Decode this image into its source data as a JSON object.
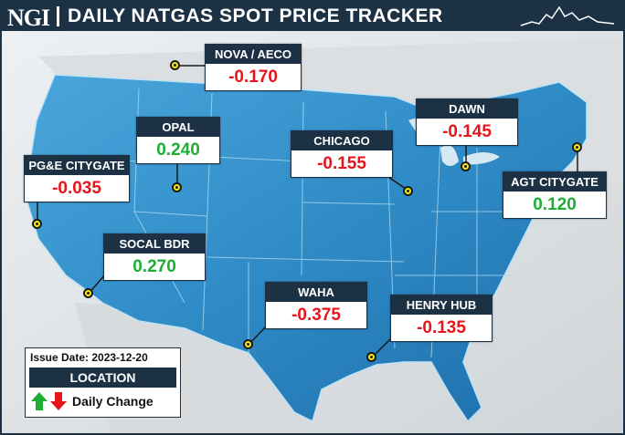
{
  "header": {
    "logo": "NGI",
    "title": "DAILY NATGAS SPOT PRICE TRACKER"
  },
  "hubs": [
    {
      "name": "NOVA / AECO",
      "change": "-0.170",
      "direction": "down"
    },
    {
      "name": "OPAL",
      "change": "0.240",
      "direction": "up"
    },
    {
      "name": "PG&E CITYGATE",
      "change": "-0.035",
      "direction": "down"
    },
    {
      "name": "SOCAL BDR",
      "change": "0.270",
      "direction": "up"
    },
    {
      "name": "CHICAGO",
      "change": "-0.155",
      "direction": "down"
    },
    {
      "name": "DAWN",
      "change": "-0.145",
      "direction": "down"
    },
    {
      "name": "AGT CITYGATE",
      "change": "0.120",
      "direction": "up"
    },
    {
      "name": "WAHA",
      "change": "-0.375",
      "direction": "down"
    },
    {
      "name": "HENRY HUB",
      "change": "-0.135",
      "direction": "down"
    }
  ],
  "legend": {
    "issue_date": "Issue Date: 2023-12-20",
    "location_label": "LOCATION",
    "change_label": "Daily Change"
  },
  "colors": {
    "header_bg": "#1c3244",
    "negative": "#e8141b",
    "positive": "#1fae34",
    "marker": "#f5ea14",
    "map_fill": "#2f8bc6",
    "surrounding_land": "#d9dcde"
  }
}
